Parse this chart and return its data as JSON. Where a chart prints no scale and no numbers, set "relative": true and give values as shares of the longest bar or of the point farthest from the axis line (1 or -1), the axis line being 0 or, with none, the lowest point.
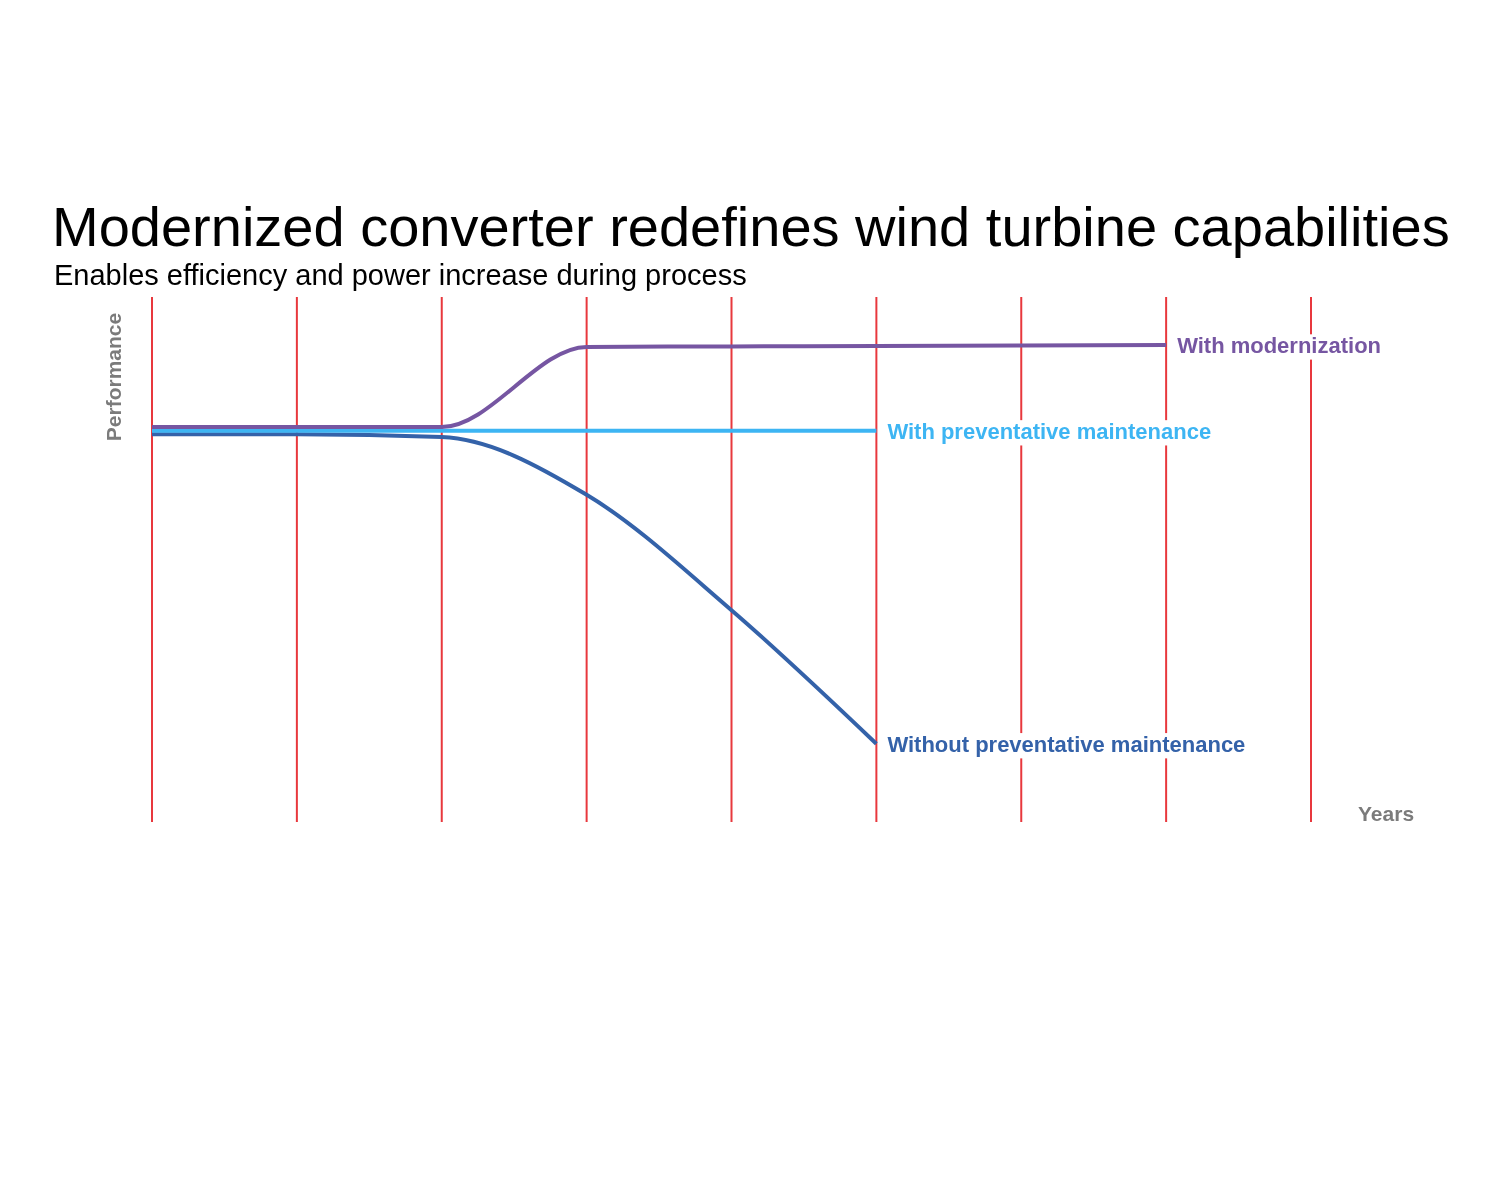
{
  "chart_data": {
    "type": "line",
    "title": "Modernized converter redefines wind turbine capabilities",
    "subtitle": "Enables efficiency and power increase during process",
    "xlabel": "Years",
    "ylabel": "Performance",
    "relative": true,
    "categories": [
      null,
      null,
      null,
      null,
      null,
      null,
      null,
      null,
      null
    ],
    "grid": "x",
    "line_style": "solid",
    "series": [
      {
        "name": "With modernization",
        "color": "#7656a2",
        "values": [
          0.828,
          0.828,
          0.828,
          0.996,
          0.997,
          0.998,
          0.999,
          1,
          null
        ]
      },
      {
        "name": "With preventative maintenance",
        "color": "#3db5f3",
        "values": [
          0.82,
          0.82,
          0.82,
          0.82,
          0.82,
          0.82,
          null,
          null,
          null
        ]
      },
      {
        "name": "Without preventative maintenance",
        "color": "#3462a9",
        "values": [
          0.813,
          0.813,
          0.807,
          0.686,
          0.444,
          0.164,
          null,
          null,
          null
        ]
      }
    ]
  }
}
